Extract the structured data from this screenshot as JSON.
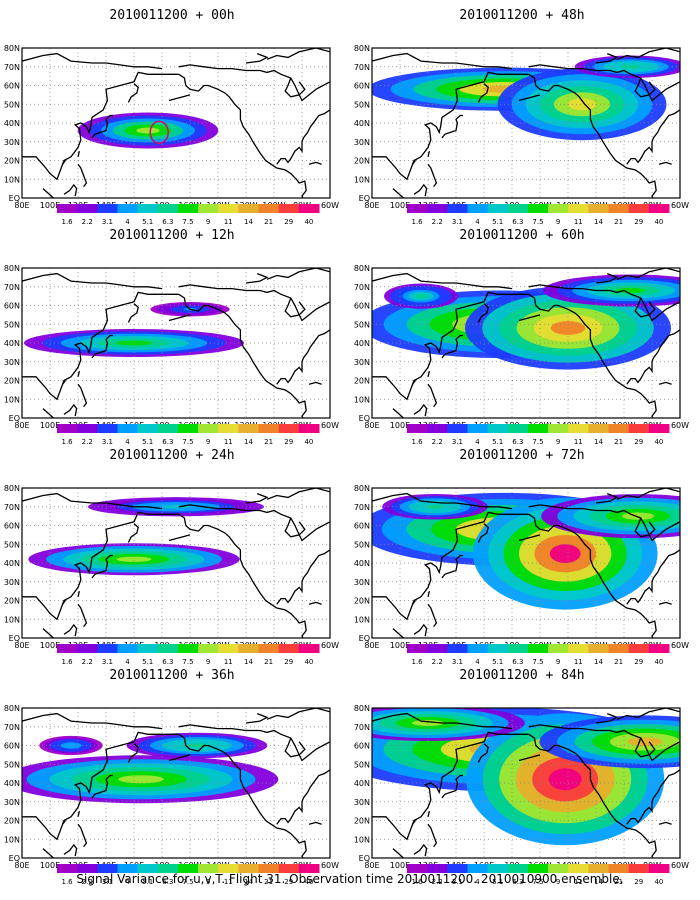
{
  "panels": [
    {
      "title": "2010011200 + 00h",
      "hotspots": [
        {
          "lon": 170,
          "lat": 36,
          "r": 1.0,
          "level": 0.55,
          "sx": 1.6,
          "sy": 0.9
        }
      ]
    },
    {
      "title": "2010011200 + 12h",
      "hotspots": [
        {
          "lon": 160,
          "lat": 40,
          "r": 1.0,
          "level": 0.5,
          "sx": 2.5,
          "sy": 0.7
        },
        {
          "lon": 200,
          "lat": 58,
          "r": 0.6,
          "level": 0.25,
          "sx": 1.5,
          "sy": 0.6
        }
      ]
    },
    {
      "title": "2010011200 + 24h",
      "hotspots": [
        {
          "lon": 160,
          "lat": 42,
          "r": 1.0,
          "level": 0.6,
          "sx": 2.4,
          "sy": 0.8
        },
        {
          "lon": 190,
          "lat": 70,
          "r": 0.8,
          "level": 0.35,
          "sx": 2.5,
          "sy": 0.6
        }
      ]
    },
    {
      "title": "2010011200 + 36h",
      "hotspots": [
        {
          "lon": 165,
          "lat": 42,
          "r": 1.2,
          "level": 0.6,
          "sx": 2.6,
          "sy": 1.0
        },
        {
          "lon": 205,
          "lat": 60,
          "r": 0.8,
          "level": 0.45,
          "sx": 2.0,
          "sy": 0.8
        },
        {
          "lon": 115,
          "lat": 60,
          "r": 0.6,
          "level": 0.3,
          "sx": 1.2,
          "sy": 0.8
        }
      ]
    },
    {
      "title": "2010011200 + 48h",
      "hotspots": [
        {
          "lon": 175,
          "lat": 58,
          "r": 1.2,
          "level": 0.75,
          "sx": 2.6,
          "sy": 0.9
        },
        {
          "lon": 230,
          "lat": 50,
          "r": 1.2,
          "level": 0.65,
          "sx": 1.6,
          "sy": 1.5
        },
        {
          "lon": 265,
          "lat": 70,
          "r": 0.8,
          "level": 0.45,
          "sx": 1.6,
          "sy": 0.7
        }
      ]
    },
    {
      "title": "2010011200 + 60h",
      "hotspots": [
        {
          "lon": 170,
          "lat": 50,
          "r": 1.3,
          "level": 0.7,
          "sx": 2.4,
          "sy": 1.3
        },
        {
          "lon": 220,
          "lat": 48,
          "r": 1.3,
          "level": 0.8,
          "sx": 1.8,
          "sy": 1.6
        },
        {
          "lon": 265,
          "lat": 68,
          "r": 1.0,
          "level": 0.5,
          "sx": 2.0,
          "sy": 0.8
        },
        {
          "lon": 115,
          "lat": 65,
          "r": 0.7,
          "level": 0.4,
          "sx": 1.2,
          "sy": 0.9
        }
      ]
    },
    {
      "title": "2010011200 + 72h",
      "hotspots": [
        {
          "lon": 175,
          "lat": 58,
          "r": 1.4,
          "level": 0.75,
          "sx": 2.4,
          "sy": 1.3
        },
        {
          "lon": 218,
          "lat": 45,
          "r": 1.4,
          "level": 0.95,
          "sx": 1.5,
          "sy": 2.0
        },
        {
          "lon": 270,
          "lat": 65,
          "r": 1.1,
          "level": 0.6,
          "sx": 2.0,
          "sy": 1.0
        },
        {
          "lon": 125,
          "lat": 70,
          "r": 0.8,
          "level": 0.45,
          "sx": 1.5,
          "sy": 0.8
        }
      ]
    },
    {
      "title": "2010011200 + 84h",
      "hotspots": [
        {
          "lon": 170,
          "lat": 58,
          "r": 1.5,
          "level": 0.75,
          "sx": 2.6,
          "sy": 1.4
        },
        {
          "lon": 218,
          "lat": 42,
          "r": 1.5,
          "level": 1.0,
          "sx": 1.5,
          "sy": 2.2
        },
        {
          "lon": 275,
          "lat": 62,
          "r": 1.2,
          "level": 0.7,
          "sx": 2.0,
          "sy": 1.1
        },
        {
          "lon": 120,
          "lat": 72,
          "r": 1.0,
          "level": 0.6,
          "sx": 2.2,
          "sy": 0.9
        }
      ]
    }
  ],
  "lat_labels": [
    "EQ",
    "10N",
    "20N",
    "30N",
    "40N",
    "50N",
    "60N",
    "70N",
    "80N"
  ],
  "lon_labels": [
    "80E",
    "100E",
    "120E",
    "140E",
    "160E",
    "180",
    "160W",
    "140W",
    "120W",
    "100W",
    "80W",
    "60W"
  ],
  "colorbar": {
    "levels": [
      "1.6",
      "2.2",
      "3.1",
      "4",
      "5.1",
      "6.3",
      "7.5",
      "9",
      "11",
      "14",
      "21",
      "29",
      "40"
    ],
    "colors": [
      "#a000c8",
      "#8200dc",
      "#1e3cff",
      "#00a0ff",
      "#00c8c8",
      "#00d28c",
      "#00dc00",
      "#a0e632",
      "#e6dc32",
      "#e6af2d",
      "#f08228",
      "#fa3c3c",
      "#f00082"
    ]
  },
  "footer": "Signal Variance for u,v,T. Flight 31. Observation time 2010011200. 2010010900 ensemble."
}
